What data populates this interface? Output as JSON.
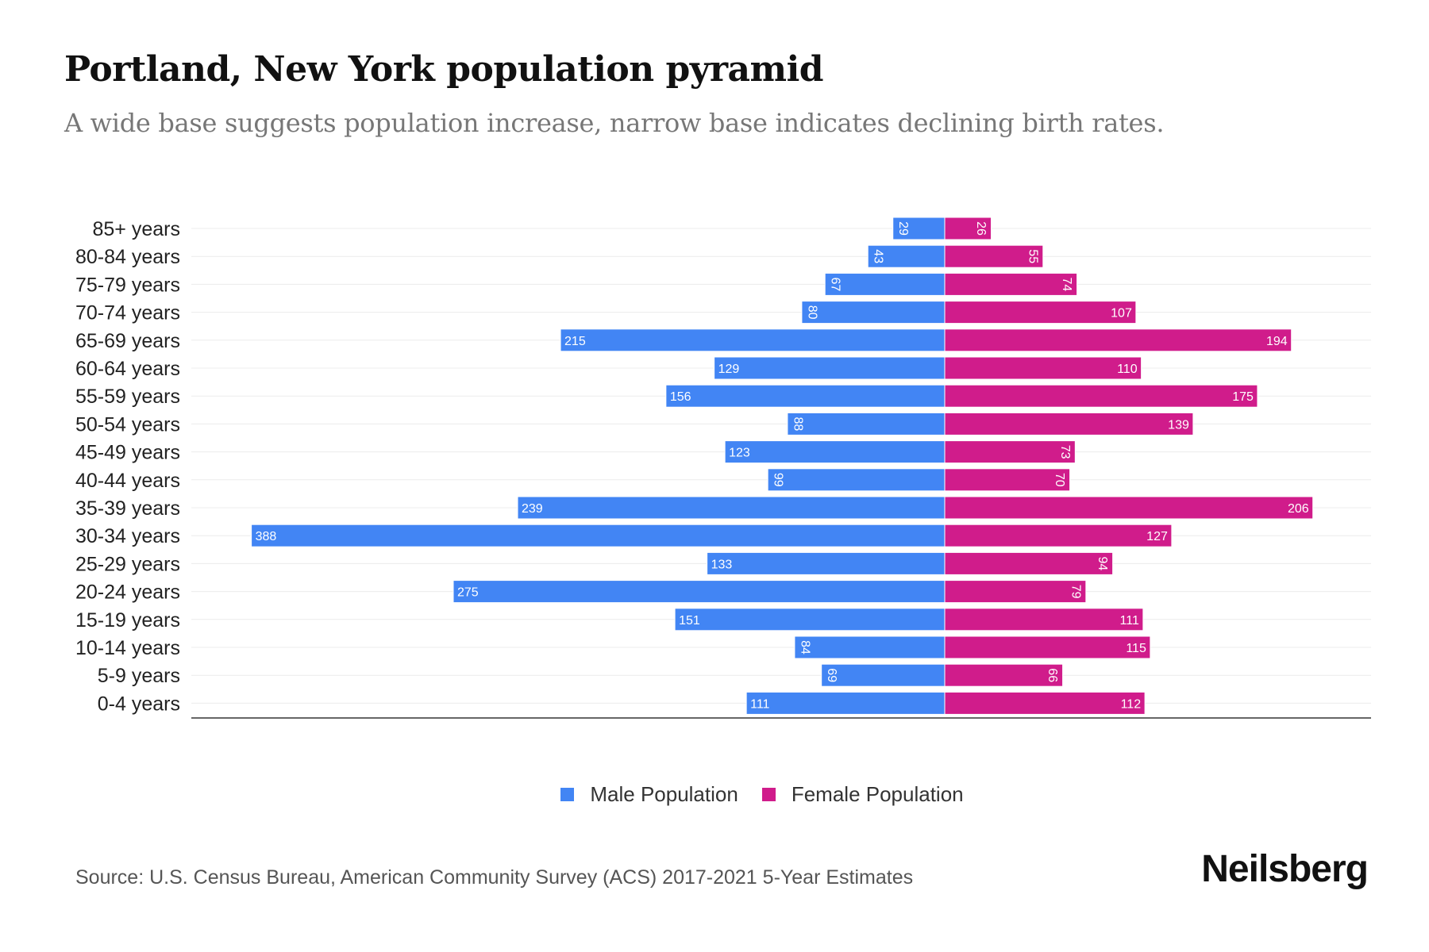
{
  "title": "Portland, New York population pyramid",
  "subtitle": "A wide base suggests population increase, narrow base indicates declining birth rates.",
  "source": "Source: U.S. Census Bureau, American Community Survey (ACS) 2017-2021 5-Year Estimates",
  "logo": "Neilsberg",
  "colors": {
    "male": "#4285F4",
    "female": "#D01C8B"
  },
  "chart_data": {
    "type": "bar",
    "orientation": "horizontal-pyramid",
    "categories": [
      "85+ years",
      "80-84 years",
      "75-79 years",
      "70-74 years",
      "65-69 years",
      "60-64 years",
      "55-59 years",
      "50-54 years",
      "45-49 years",
      "40-44 years",
      "35-39 years",
      "30-34 years",
      "25-29 years",
      "20-24 years",
      "15-19 years",
      "10-14 years",
      "5-9 years",
      "0-4 years"
    ],
    "series": [
      {
        "name": "Male Population",
        "values": [
          29,
          43,
          67,
          80,
          215,
          129,
          156,
          88,
          123,
          99,
          239,
          388,
          133,
          275,
          151,
          84,
          69,
          111
        ]
      },
      {
        "name": "Female Population",
        "values": [
          26,
          55,
          74,
          107,
          194,
          110,
          175,
          139,
          73,
          70,
          206,
          127,
          94,
          79,
          111,
          115,
          66,
          112
        ]
      }
    ],
    "xlim": [
      -420,
      390
    ],
    "grid": true,
    "legend": "bottom-center"
  }
}
